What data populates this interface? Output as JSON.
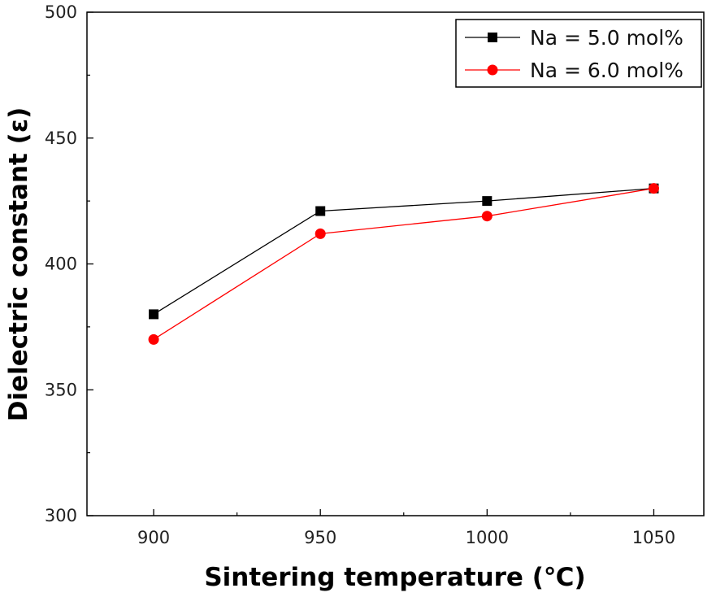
{
  "chart_data": {
    "type": "line",
    "title": "",
    "xlabel": "Sintering temperature (℃)",
    "ylabel": "Dielectric constant (ε)",
    "x": [
      900,
      950,
      1000,
      1050
    ],
    "xlim": [
      880,
      1065
    ],
    "ylim": [
      300,
      500
    ],
    "x_ticks": [
      900,
      950,
      1000,
      1050
    ],
    "x_tick_labels": [
      "900",
      "950",
      "1000",
      "1050"
    ],
    "y_ticks": [
      300,
      350,
      400,
      450,
      500
    ],
    "y_tick_labels": [
      "300",
      "350",
      "400",
      "450",
      "500"
    ],
    "grid": false,
    "legend_position": "top-right",
    "series": [
      {
        "name": "Na = 5.0 mol%",
        "values": [
          380,
          421,
          425,
          430
        ],
        "color": "#000000",
        "marker": "square"
      },
      {
        "name": "Na = 6.0 mol%",
        "values": [
          370,
          412,
          419,
          430
        ],
        "color": "#ff0000",
        "marker": "circle"
      }
    ]
  }
}
